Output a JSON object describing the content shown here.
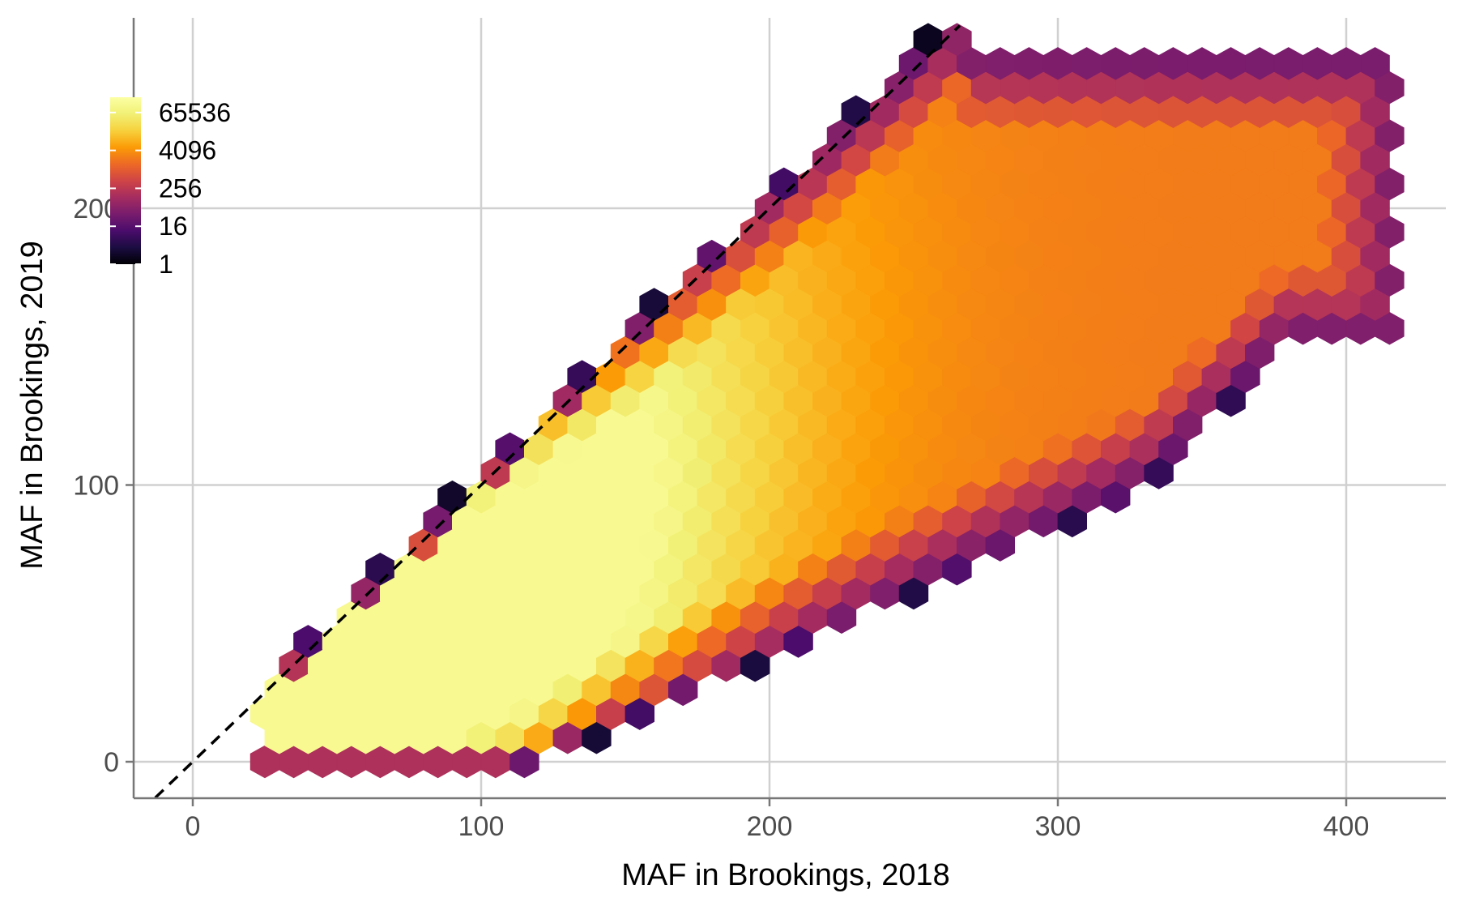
{
  "chart_data": {
    "type": "heatmap",
    "subtype": "hexbin",
    "xlabel": "MAF in Brookings, 2018",
    "ylabel": "MAF in Brookings, 2019",
    "xlim": [
      -20,
      433
    ],
    "ylim": [
      -13,
      268
    ],
    "x_ticks": [
      0,
      100,
      200,
      300,
      400
    ],
    "x_tick_labels": [
      "0",
      "100",
      "200",
      "300",
      "400"
    ],
    "y_ticks": [
      0,
      100,
      200
    ],
    "y_tick_labels": [
      "0",
      "100",
      "200"
    ],
    "grid": true,
    "reference_line": {
      "type": "identity",
      "slope": 1,
      "intercept": 0,
      "style": "dashed",
      "color": "#000000"
    },
    "color_scale": "inferno",
    "color_transform": "log2",
    "legend": {
      "position": "top-left",
      "labels": [
        "65536",
        "4096",
        "256",
        "16",
        "1"
      ],
      "values": [
        65536,
        4096,
        256,
        16,
        1
      ],
      "min": 1,
      "max": 200000
    },
    "bin_size": {
      "x": 10,
      "y": 8.7
    },
    "approx_count_model": "estimated from colors: dense near x≈50,y≈30 (≈100000), falling to ≈1 at the edges of the region"
  }
}
